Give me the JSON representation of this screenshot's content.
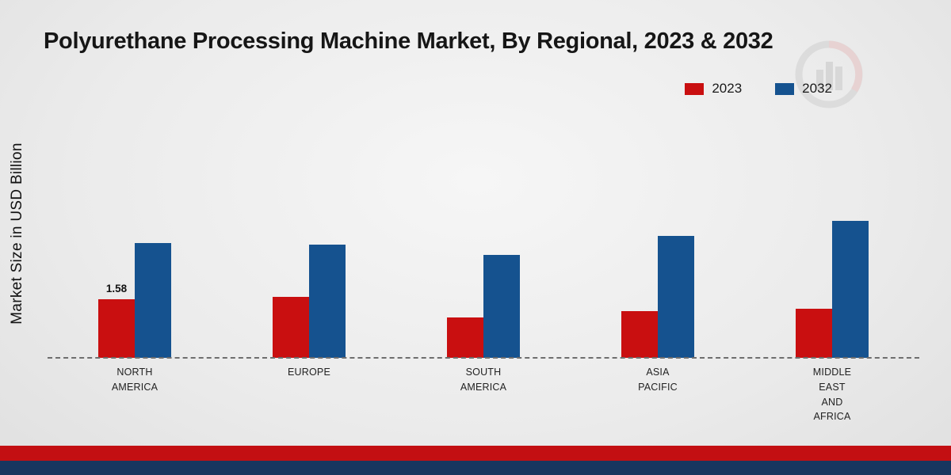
{
  "title": "Polyurethane Processing Machine Market, By Regional, 2023 & 2032",
  "y_axis_label": "Market Size in USD Billion",
  "chart_data": {
    "type": "bar",
    "title": "Polyurethane Processing Machine Market, By Regional, 2023 & 2032",
    "ylabel": "Market Size in USD Billion",
    "xlabel": "",
    "ylim": [
      0,
      4
    ],
    "grid": false,
    "legend_position": "top-right",
    "baseline_dashed": true,
    "categories": [
      "North America",
      "Europe",
      "South America",
      "Asia Pacific",
      "Middle East and Africa"
    ],
    "category_labels": [
      "NORTH\nAMERICA",
      "EUROPE",
      "SOUTH\nAMERICA",
      "ASIA\nPACIFIC",
      "MIDDLE\nEAST\nAND\nAFRICA"
    ],
    "series": [
      {
        "name": "2023",
        "color": "#c90f10",
        "values": [
          1.58,
          1.65,
          1.1,
          1.25,
          1.32
        ]
      },
      {
        "name": "2032",
        "color": "#15528f",
        "values": [
          3.1,
          3.05,
          2.78,
          3.3,
          3.7
        ]
      }
    ],
    "data_labels": [
      {
        "category_index": 0,
        "series": "2023",
        "text": "1.58"
      }
    ]
  },
  "footer": {
    "red_stripe_color": "#c30f12",
    "navy_stripe_color": "#17365f"
  }
}
